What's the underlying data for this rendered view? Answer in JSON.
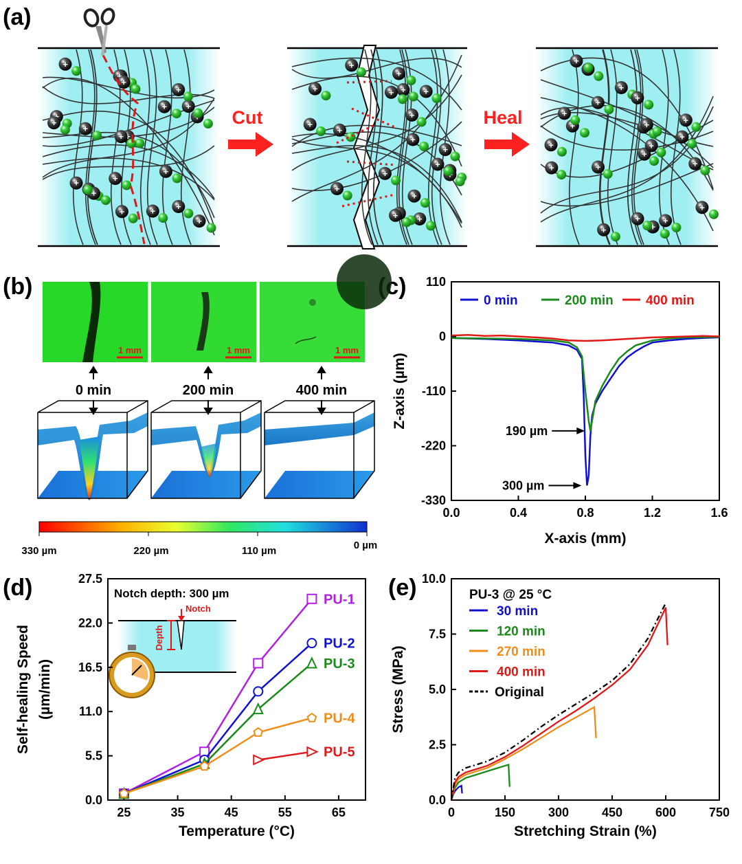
{
  "panel_labels": {
    "a": "(a)",
    "b": "(b)",
    "c": "(c)",
    "d": "(d)",
    "e": "(e)"
  },
  "panel_a": {
    "arrow_cut": "Cut",
    "arrow_heal": "Heal",
    "arrow_color": "#ff2020"
  },
  "panel_b": {
    "times": [
      "0 min",
      "200 min",
      "400 min"
    ],
    "scale_bar": "1 mm",
    "colorbar_ticks": [
      "330 µm",
      "220 µm",
      "110 µm",
      "0 µm"
    ]
  },
  "chart_data": [
    {
      "panel": "c",
      "type": "line",
      "xlabel": "X-axis (mm)",
      "ylabel": "Z-axis (µm)",
      "xlim": [
        0.0,
        1.6
      ],
      "ylim": [
        -330,
        110
      ],
      "xticks": [
        "0.0",
        "0.4",
        "0.8",
        "1.2",
        "1.6"
      ],
      "yticks": [
        "110",
        "0",
        "-110",
        "-220",
        "-330"
      ],
      "legend_position": "top",
      "grid": false,
      "series": [
        {
          "name": "0 min",
          "color": "#1010d0",
          "x": [
            0.0,
            0.2,
            0.4,
            0.6,
            0.7,
            0.75,
            0.78,
            0.79,
            0.8,
            0.81,
            0.82,
            0.83,
            0.84,
            0.86,
            0.9,
            0.95,
            1.0,
            1.05,
            1.1,
            1.15,
            1.2,
            1.3,
            1.4,
            1.5,
            1.6
          ],
          "y": [
            -3,
            -5,
            -8,
            -12,
            -18,
            -27,
            -45,
            -120,
            -240,
            -300,
            -280,
            -200,
            -160,
            -135,
            -110,
            -85,
            -60,
            -42,
            -30,
            -20,
            -12,
            -8,
            -5,
            -3,
            -2
          ]
        },
        {
          "name": "200 min",
          "color": "#1a8a1a",
          "x": [
            0.0,
            0.2,
            0.4,
            0.6,
            0.7,
            0.75,
            0.78,
            0.8,
            0.82,
            0.83,
            0.84,
            0.86,
            0.9,
            0.95,
            1.0,
            1.05,
            1.1,
            1.2,
            1.3,
            1.4,
            1.6
          ],
          "y": [
            -3,
            -4,
            -5,
            -8,
            -12,
            -22,
            -40,
            -110,
            -170,
            -190,
            -170,
            -130,
            -100,
            -70,
            -45,
            -30,
            -18,
            -8,
            -4,
            -2,
            -1
          ]
        },
        {
          "name": "400 min",
          "color": "#e01818",
          "x": [
            0.0,
            0.1,
            0.2,
            0.3,
            0.4,
            0.5,
            0.6,
            0.7,
            0.8,
            0.9,
            1.0,
            1.1,
            1.2,
            1.3,
            1.4,
            1.5,
            1.6
          ],
          "y": [
            2,
            3,
            1,
            2,
            0,
            -2,
            -4,
            -8,
            -9,
            -8,
            -6,
            -4,
            -2,
            -1,
            0,
            1,
            0
          ]
        }
      ],
      "annotations": [
        {
          "text": "190 µm",
          "x": 0.83,
          "y": -190
        },
        {
          "text": "300 µm",
          "x": 0.81,
          "y": -300
        }
      ]
    },
    {
      "panel": "d",
      "type": "line",
      "xlabel": "Temperature (°C)",
      "ylabel": "Self-healing Speed (µm/min)",
      "xlim": [
        22,
        70
      ],
      "ylim": [
        0,
        27.5
      ],
      "xticks": [
        "25",
        "35",
        "45",
        "55",
        "65"
      ],
      "yticks": [
        "0.0",
        "5.5",
        "11.0",
        "16.5",
        "22.0",
        "27.5"
      ],
      "inset_title": "Notch depth: 300 µm",
      "inset_notch_label": "Notch",
      "inset_depth_label": "Depth",
      "series": [
        {
          "name": "PU-1",
          "color": "#b020e0",
          "marker": "square",
          "x": [
            25,
            40,
            50,
            60
          ],
          "y": [
            0.8,
            6.0,
            17.0,
            25.0
          ]
        },
        {
          "name": "PU-2",
          "color": "#1010d0",
          "marker": "circle",
          "x": [
            25,
            40,
            50,
            60
          ],
          "y": [
            0.8,
            5.0,
            13.5,
            19.5
          ]
        },
        {
          "name": "PU-3",
          "color": "#1a8a1a",
          "marker": "triangle-up",
          "x": [
            25,
            40,
            50,
            60
          ],
          "y": [
            0.8,
            4.5,
            11.3,
            17.0
          ]
        },
        {
          "name": "PU-4",
          "color": "#f08c1a",
          "marker": "pentagon",
          "x": [
            25,
            40,
            50,
            60
          ],
          "y": [
            0.8,
            4.2,
            8.4,
            10.2
          ]
        },
        {
          "name": "PU-5",
          "color": "#e01818",
          "marker": "triangle-right",
          "x": [
            50,
            60
          ],
          "y": [
            5.0,
            6.0
          ]
        }
      ]
    },
    {
      "panel": "e",
      "type": "line",
      "xlabel": "Stretching Strain (%)",
      "ylabel": "Stress (MPa)",
      "xlim": [
        0,
        750
      ],
      "ylim": [
        0,
        10
      ],
      "xticks": [
        "0",
        "150",
        "300",
        "450",
        "600",
        "750"
      ],
      "yticks": [
        "0.0",
        "2.5",
        "5.0",
        "7.5",
        "10.0"
      ],
      "legend_title": "PU-3 @ 25 °C",
      "legend_position": "top-left",
      "series": [
        {
          "name": "30 min",
          "color": "#1010d0",
          "x": [
            0,
            5,
            10,
            15,
            20,
            25,
            28,
            30
          ],
          "y": [
            0,
            0.25,
            0.4,
            0.5,
            0.58,
            0.62,
            0.65,
            0.3
          ]
        },
        {
          "name": "120 min",
          "color": "#1a8a1a",
          "x": [
            0,
            10,
            20,
            40,
            60,
            80,
            100,
            120,
            140,
            160,
            163
          ],
          "y": [
            0,
            0.55,
            0.8,
            1.0,
            1.1,
            1.2,
            1.3,
            1.4,
            1.5,
            1.6,
            0.6
          ]
        },
        {
          "name": "270 min",
          "color": "#f08c1a",
          "x": [
            0,
            10,
            20,
            40,
            60,
            100,
            150,
            200,
            250,
            300,
            350,
            400,
            405
          ],
          "y": [
            0,
            0.7,
            0.95,
            1.15,
            1.25,
            1.45,
            1.85,
            2.3,
            2.8,
            3.3,
            3.75,
            4.2,
            2.8
          ]
        },
        {
          "name": "400 min",
          "color": "#e01818",
          "x": [
            0,
            10,
            20,
            40,
            60,
            100,
            150,
            200,
            250,
            300,
            350,
            400,
            450,
            500,
            550,
            600,
            605
          ],
          "y": [
            0,
            0.8,
            1.05,
            1.25,
            1.35,
            1.55,
            1.95,
            2.45,
            3.0,
            3.55,
            4.05,
            4.6,
            5.2,
            5.9,
            7.0,
            8.7,
            7.0
          ]
        },
        {
          "name": "Original",
          "color": "#000000",
          "dashed": true,
          "x": [
            0,
            10,
            20,
            40,
            60,
            100,
            150,
            200,
            250,
            300,
            350,
            400,
            450,
            500,
            550,
            600
          ],
          "y": [
            0,
            1.0,
            1.25,
            1.45,
            1.55,
            1.75,
            2.15,
            2.7,
            3.3,
            3.85,
            4.35,
            4.85,
            5.4,
            6.15,
            7.3,
            8.9
          ]
        }
      ]
    }
  ]
}
